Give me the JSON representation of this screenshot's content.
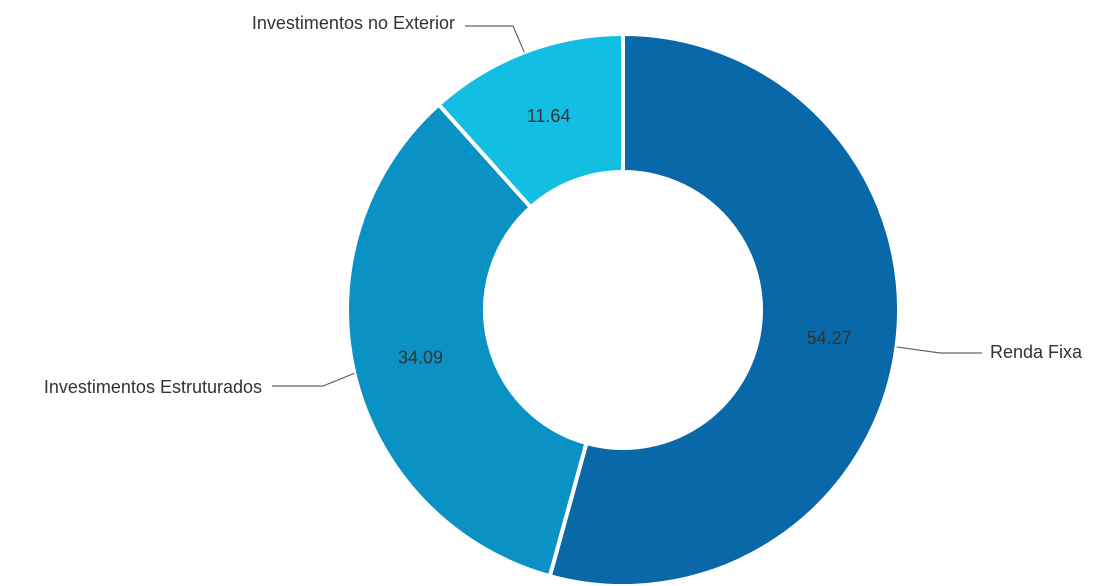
{
  "chart_data": {
    "type": "pie",
    "variant": "donut",
    "categories": [
      "Renda Fixa",
      "Investimentos Estruturados",
      "Investimentos no Exterior"
    ],
    "values": [
      54.27,
      34.09,
      11.64
    ],
    "value_labels": [
      "54.27",
      "34.09",
      "11.64"
    ],
    "colors": [
      "#0868a8",
      "#0b92c4",
      "#12bfe3"
    ],
    "label_text_color": "#333333",
    "leader_line_color": "#666666",
    "start_angle_deg": 0,
    "direction": "clockwise",
    "legend": "outside labels with leader lines"
  }
}
